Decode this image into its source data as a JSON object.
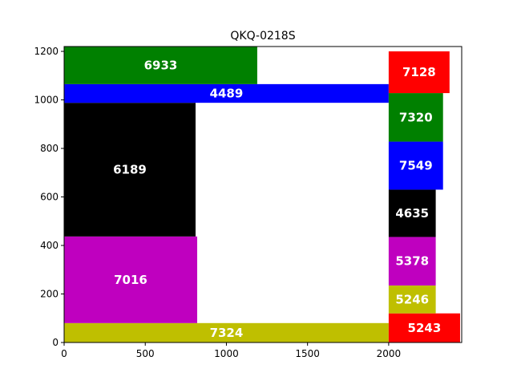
{
  "chart_data": {
    "type": "bar",
    "title": "QKQ-0218S",
    "xlabel": "",
    "ylabel": "",
    "xlim": [
      0,
      2450
    ],
    "ylim": [
      0,
      1220
    ],
    "x_ticks": [
      0,
      500,
      1000,
      1500,
      2000
    ],
    "y_ticks": [
      0,
      200,
      400,
      600,
      800,
      1000,
      1200
    ],
    "grid": false,
    "bars": [
      {
        "label": "7324",
        "x0": 0,
        "x1": 2000,
        "y0": 0,
        "y1": 80,
        "color": "#bfbf00"
      },
      {
        "label": "7016",
        "x0": 0,
        "x1": 820,
        "y0": 80,
        "y1": 437,
        "color": "#bf00bf"
      },
      {
        "label": "6189",
        "x0": 0,
        "x1": 810,
        "y0": 437,
        "y1": 988,
        "color": "#000000"
      },
      {
        "label": "4489",
        "x0": 0,
        "x1": 2000,
        "y0": 988,
        "y1": 1065,
        "color": "#0000ff"
      },
      {
        "label": "6933",
        "x0": 0,
        "x1": 1190,
        "y0": 1065,
        "y1": 1220,
        "color": "#008000"
      },
      {
        "label": "5243",
        "x0": 2000,
        "x1": 2440,
        "y0": 0,
        "y1": 120,
        "color": "#ff0000"
      },
      {
        "label": "5246",
        "x0": 2000,
        "x1": 2290,
        "y0": 120,
        "y1": 235,
        "color": "#bfbf00"
      },
      {
        "label": "5378",
        "x0": 2000,
        "x1": 2290,
        "y0": 235,
        "y1": 435,
        "color": "#bf00bf"
      },
      {
        "label": "4635",
        "x0": 2000,
        "x1": 2290,
        "y0": 435,
        "y1": 630,
        "color": "#000000"
      },
      {
        "label": "7549",
        "x0": 2000,
        "x1": 2335,
        "y0": 630,
        "y1": 828,
        "color": "#0000ff"
      },
      {
        "label": "7320",
        "x0": 2000,
        "x1": 2335,
        "y0": 828,
        "y1": 1028,
        "color": "#008000"
      },
      {
        "label": "7128",
        "x0": 2000,
        "x1": 2375,
        "y0": 1028,
        "y1": 1200,
        "color": "#ff0000"
      }
    ]
  }
}
